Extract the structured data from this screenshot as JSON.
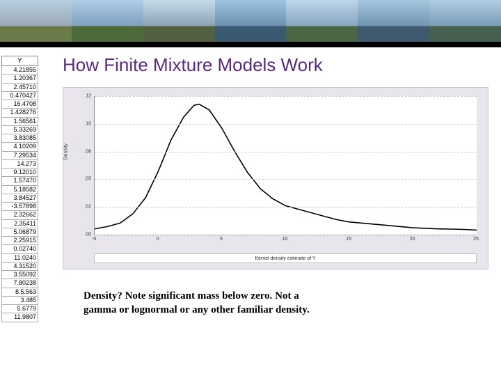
{
  "banner": {
    "panels": [
      {
        "sky": "#b8cfe0",
        "ground": "#6a7a48",
        "accent": "#9aa8b8"
      },
      {
        "sky": "#aecde6",
        "ground": "#4d6a3a",
        "accent": "#7fa0c0"
      },
      {
        "sky": "#c7dceb",
        "ground": "#506040",
        "accent": "#8aa2b5"
      },
      {
        "sky": "#9fc4e2",
        "ground": "#3a5a72",
        "accent": "#6b8fae"
      },
      {
        "sky": "#bcd6ea",
        "ground": "#4a6645",
        "accent": "#88a6c0"
      },
      {
        "sky": "#a6c6de",
        "ground": "#3f5a6e",
        "accent": "#7194b2"
      },
      {
        "sky": "#b0cde4",
        "ground": "#466050",
        "accent": "#7a9cb8"
      }
    ],
    "bar_color": "#000000"
  },
  "table": {
    "header": "Y",
    "values": [
      "4.21855",
      "1.20367",
      "2.45710",
      "0.470427",
      "16.4708",
      "1.428276",
      "1.56561",
      "5.33269",
      "3.83085",
      "4.10209",
      "7.29534",
      "14.273",
      "9.12010",
      "1.57470",
      "5.18582",
      "3.84527",
      "-3.57898",
      "2.32662",
      "2.35411",
      "5.06879",
      "2.25915",
      "0.02740",
      "11.0240",
      "4.31520",
      "3.55092",
      "7.80238",
      "8.5.563",
      "3.485",
      "5.6779",
      "11.9807"
    ]
  },
  "title": "How Finite Mixture Models Work",
  "chart": {
    "type": "line",
    "background_color": "#e8e6ec",
    "plot_bg": "#ffffff",
    "grid_color": "#cccccc",
    "curve_color": "#000000",
    "curve_width": 1.6,
    "y_label": "Density",
    "x_label": "Kernel density estimate of Y",
    "ylim": [
      0,
      0.12
    ],
    "yticks": [
      ".00",
      ".02",
      ".05",
      ".08",
      ".10",
      ".12"
    ],
    "xlim": [
      -5,
      25
    ],
    "xticks": [
      "-5",
      "0",
      "5",
      "10",
      "15",
      "20",
      "25"
    ],
    "curve": [
      [
        -5,
        0.005
      ],
      [
        -4,
        0.007
      ],
      [
        -3,
        0.01
      ],
      [
        -2,
        0.018
      ],
      [
        -1,
        0.032
      ],
      [
        0,
        0.055
      ],
      [
        1,
        0.082
      ],
      [
        2,
        0.102
      ],
      [
        2.8,
        0.112
      ],
      [
        3.2,
        0.113
      ],
      [
        4,
        0.108
      ],
      [
        5,
        0.092
      ],
      [
        6,
        0.072
      ],
      [
        7,
        0.054
      ],
      [
        8,
        0.04
      ],
      [
        9,
        0.031
      ],
      [
        10,
        0.025
      ],
      [
        11,
        0.022
      ],
      [
        12,
        0.019
      ],
      [
        13,
        0.016
      ],
      [
        14,
        0.013
      ],
      [
        15,
        0.011
      ],
      [
        16,
        0.01
      ],
      [
        17,
        0.009
      ],
      [
        18,
        0.008
      ],
      [
        19,
        0.007
      ],
      [
        20,
        0.006
      ],
      [
        21,
        0.0055
      ],
      [
        22,
        0.005
      ],
      [
        23,
        0.0048
      ],
      [
        24,
        0.0045
      ],
      [
        25,
        0.004
      ]
    ]
  },
  "caption_line1": "Density?  Note significant mass below zero.  Not a",
  "caption_line2": "gamma or lognormal or any other familiar density.",
  "colors": {
    "title": "#5a2a82"
  }
}
